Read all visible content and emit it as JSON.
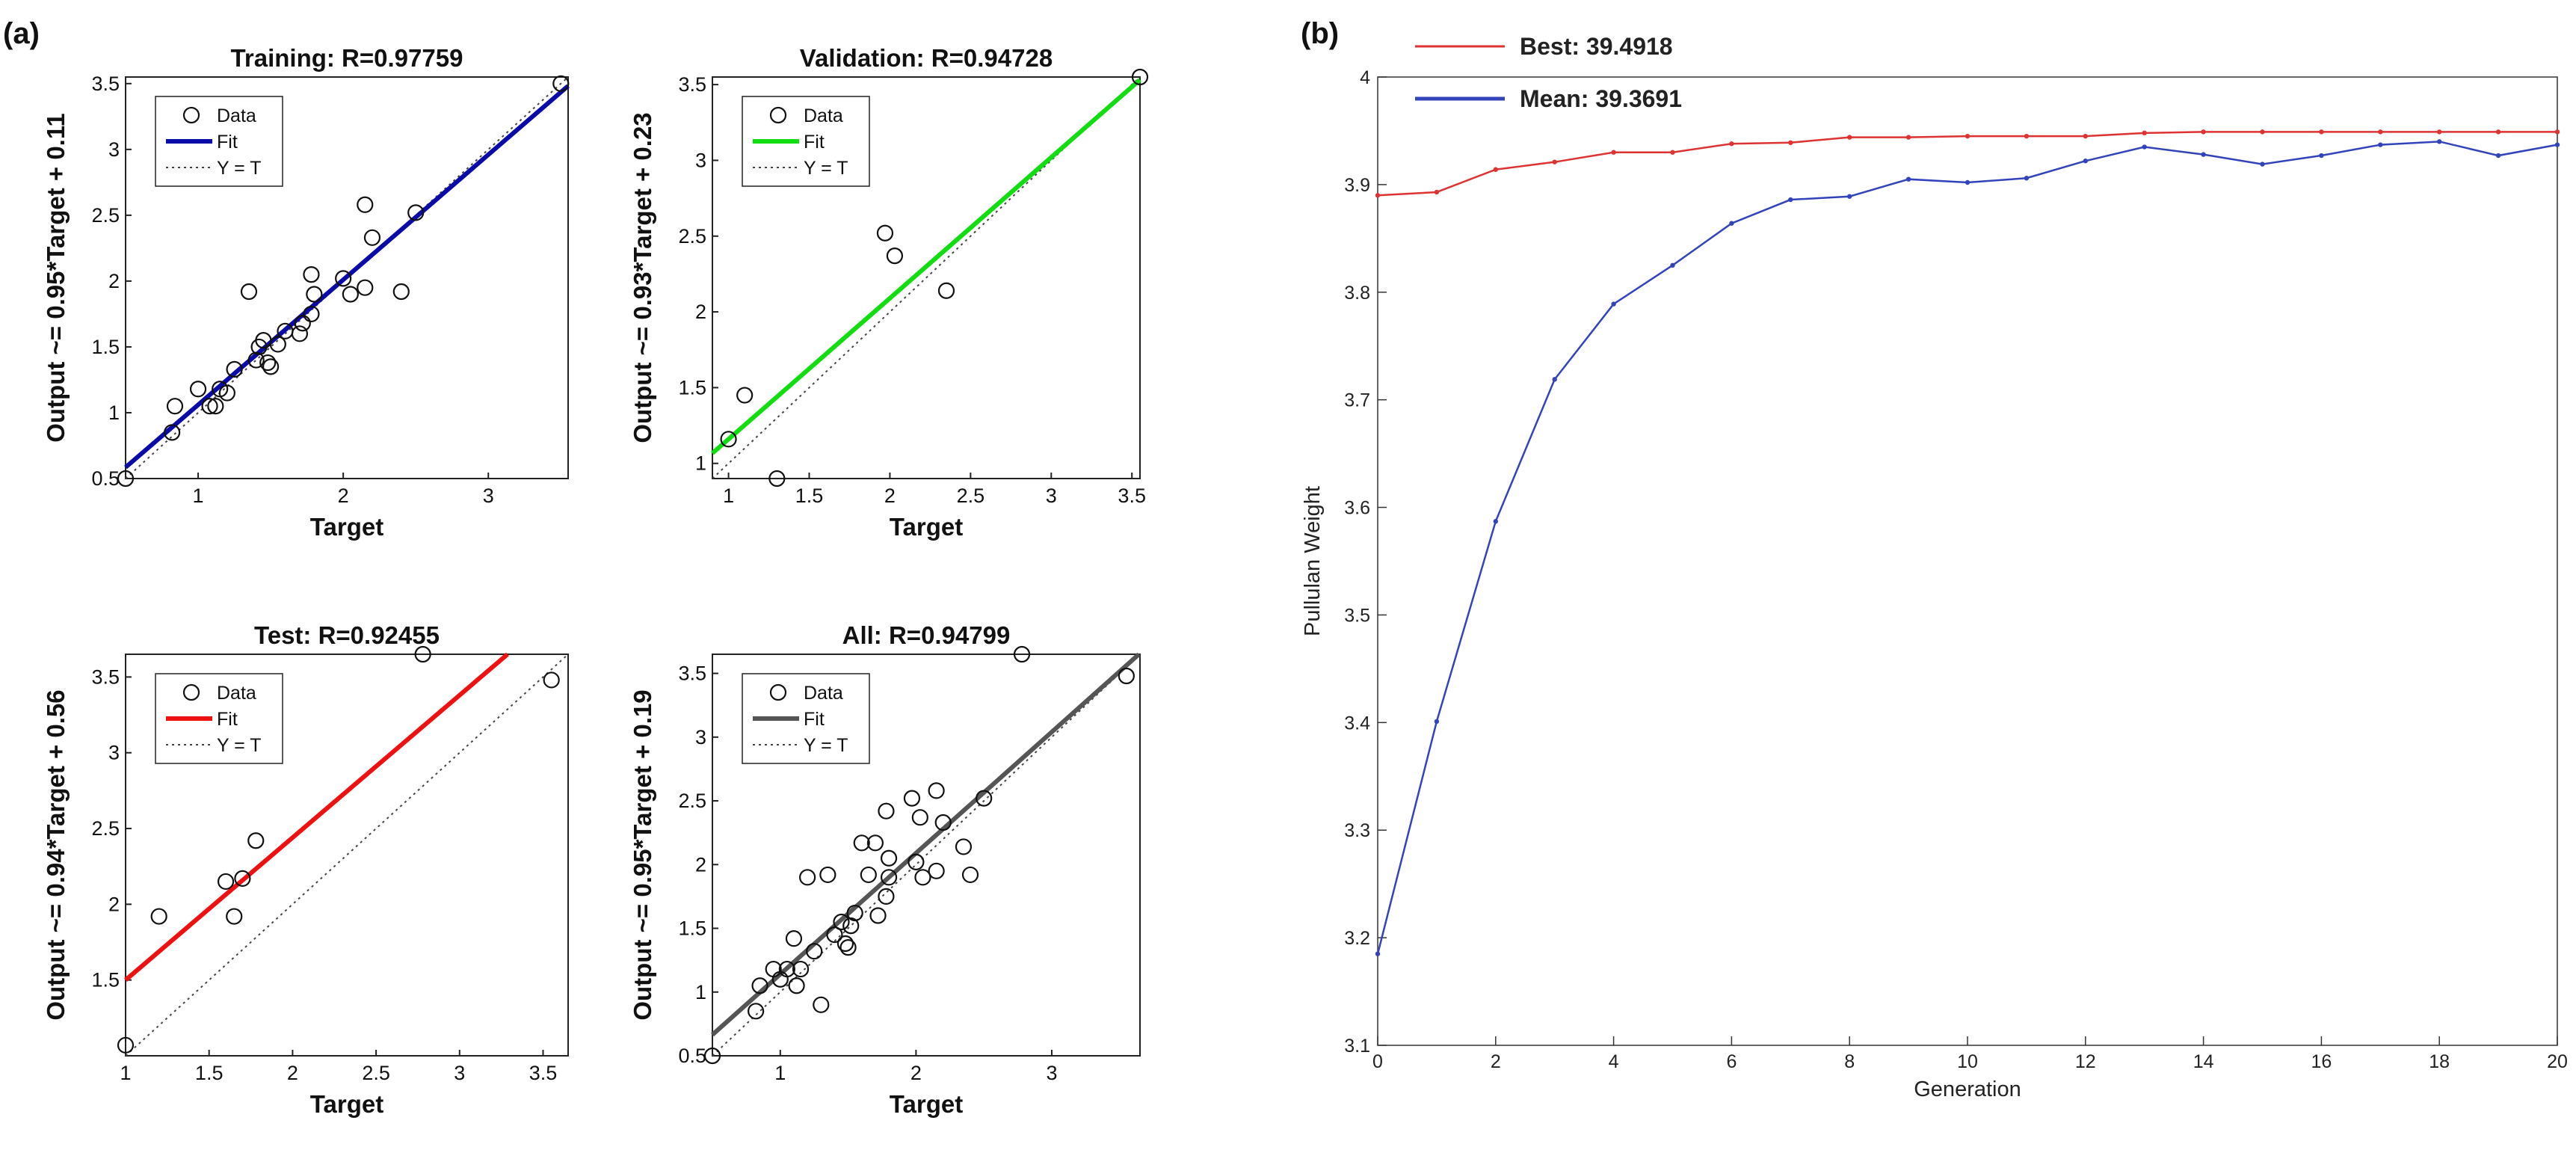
{
  "panel_labels": {
    "a": "(a)",
    "b": "(b)"
  },
  "chart_data": [
    {
      "type": "scatter",
      "title": "Training: R=0.97759",
      "xlabel": "Target",
      "ylabel": "Output ~= 0.95*Target + 0.11",
      "xlim": [
        0.5,
        3.55
      ],
      "ylim": [
        0.5,
        3.55
      ],
      "xticks": [
        1,
        2,
        3
      ],
      "yticks": [
        0.5,
        1,
        1.5,
        2,
        2.5,
        3,
        3.5
      ],
      "fit": {
        "slope": 0.95,
        "intercept": 0.11,
        "color": "#0a0aa8"
      },
      "legend": {
        "data": "Data",
        "fit": "Fit",
        "ident": "Y = T"
      },
      "points": [
        [
          0.5,
          0.5
        ],
        [
          0.82,
          0.85
        ],
        [
          0.84,
          1.05
        ],
        [
          1.0,
          1.18
        ],
        [
          1.08,
          1.05
        ],
        [
          1.12,
          1.05
        ],
        [
          1.15,
          1.18
        ],
        [
          1.2,
          1.15
        ],
        [
          1.25,
          1.33
        ],
        [
          1.35,
          1.92
        ],
        [
          1.4,
          1.4
        ],
        [
          1.42,
          1.5
        ],
        [
          1.45,
          1.55
        ],
        [
          1.48,
          1.38
        ],
        [
          1.5,
          1.35
        ],
        [
          1.55,
          1.52
        ],
        [
          1.6,
          1.62
        ],
        [
          1.7,
          1.6
        ],
        [
          1.72,
          1.68
        ],
        [
          1.78,
          1.75
        ],
        [
          1.8,
          1.9
        ],
        [
          1.78,
          2.05
        ],
        [
          2.0,
          2.02
        ],
        [
          2.05,
          1.9
        ],
        [
          2.15,
          1.95
        ],
        [
          2.15,
          2.58
        ],
        [
          2.2,
          2.33
        ],
        [
          2.4,
          1.92
        ],
        [
          2.5,
          2.52
        ],
        [
          3.5,
          3.5
        ]
      ]
    },
    {
      "type": "scatter",
      "title": "Validation: R=0.94728",
      "xlabel": "Target",
      "ylabel": "Output ~= 0.93*Target + 0.23",
      "xlim": [
        0.9,
        3.55
      ],
      "ylim": [
        0.9,
        3.55
      ],
      "xticks": [
        1,
        1.5,
        2,
        2.5,
        3,
        3.5
      ],
      "yticks": [
        1,
        1.5,
        2,
        2.5,
        3,
        3.5
      ],
      "fit": {
        "slope": 0.93,
        "intercept": 0.23,
        "color": "#11dd11"
      },
      "legend": {
        "data": "Data",
        "fit": "Fit",
        "ident": "Y = T"
      },
      "points": [
        [
          1.0,
          1.16
        ],
        [
          1.1,
          1.45
        ],
        [
          1.3,
          0.9
        ],
        [
          1.97,
          2.52
        ],
        [
          2.03,
          2.37
        ],
        [
          2.35,
          2.14
        ],
        [
          3.55,
          3.55
        ]
      ]
    },
    {
      "type": "scatter",
      "title": "Test: R=0.92455",
      "xlabel": "Target",
      "ylabel": "Output ~= 0.94*Target + 0.56",
      "xlim": [
        1.0,
        3.65
      ],
      "ylim": [
        1.0,
        3.65
      ],
      "xticks": [
        1,
        1.5,
        2,
        2.5,
        3,
        3.5
      ],
      "yticks": [
        1.5,
        2,
        2.5,
        3,
        3.5
      ],
      "fit": {
        "slope": 0.94,
        "intercept": 0.56,
        "color": "#ee1111"
      },
      "legend": {
        "data": "Data",
        "fit": "Fit",
        "ident": "Y = T"
      },
      "points": [
        [
          1.0,
          1.07
        ],
        [
          1.2,
          1.92
        ],
        [
          1.6,
          2.15
        ],
        [
          1.65,
          1.92
        ],
        [
          1.7,
          2.17
        ],
        [
          1.78,
          2.42
        ],
        [
          2.78,
          3.65
        ],
        [
          3.55,
          3.48
        ]
      ]
    },
    {
      "type": "scatter",
      "title": "All: R=0.94799",
      "xlabel": "Target",
      "ylabel": "Output ~= 0.95*Target + 0.19",
      "xlim": [
        0.5,
        3.65
      ],
      "ylim": [
        0.5,
        3.65
      ],
      "xticks": [
        1,
        2,
        3
      ],
      "yticks": [
        0.5,
        1,
        1.5,
        2,
        2.5,
        3,
        3.5
      ],
      "fit": {
        "slope": 0.95,
        "intercept": 0.19,
        "color": "#555555"
      },
      "legend": {
        "data": "Data",
        "fit": "Fit",
        "ident": "Y = T"
      },
      "points": [
        [
          0.5,
          0.5
        ],
        [
          0.82,
          0.85
        ],
        [
          0.85,
          1.05
        ],
        [
          0.95,
          1.18
        ],
        [
          1.0,
          1.1
        ],
        [
          1.05,
          1.18
        ],
        [
          1.1,
          1.42
        ],
        [
          1.12,
          1.05
        ],
        [
          1.15,
          1.18
        ],
        [
          1.2,
          1.9
        ],
        [
          1.25,
          1.32
        ],
        [
          1.3,
          0.9
        ],
        [
          1.35,
          1.92
        ],
        [
          1.4,
          1.45
        ],
        [
          1.45,
          1.55
        ],
        [
          1.48,
          1.38
        ],
        [
          1.5,
          1.35
        ],
        [
          1.52,
          1.52
        ],
        [
          1.55,
          1.62
        ],
        [
          1.6,
          2.17
        ],
        [
          1.65,
          1.92
        ],
        [
          1.7,
          2.17
        ],
        [
          1.72,
          1.6
        ],
        [
          1.78,
          1.75
        ],
        [
          1.78,
          2.42
        ],
        [
          1.8,
          1.9
        ],
        [
          1.8,
          2.05
        ],
        [
          1.97,
          2.52
        ],
        [
          2.0,
          2.02
        ],
        [
          2.03,
          2.37
        ],
        [
          2.05,
          1.9
        ],
        [
          2.15,
          1.95
        ],
        [
          2.15,
          2.58
        ],
        [
          2.2,
          2.33
        ],
        [
          2.35,
          2.14
        ],
        [
          2.4,
          1.92
        ],
        [
          2.5,
          2.52
        ],
        [
          2.78,
          3.65
        ],
        [
          3.55,
          3.48
        ]
      ]
    },
    {
      "type": "line",
      "title": "",
      "xlabel": "Generation",
      "ylabel": "Pullulan Weight",
      "xlim": [
        0,
        20
      ],
      "ylim": [
        3.1,
        4.0
      ],
      "xticks": [
        0,
        2,
        4,
        6,
        8,
        10,
        12,
        14,
        16,
        18,
        20
      ],
      "yticks": [
        3.1,
        3.2,
        3.3,
        3.4,
        3.5,
        3.6,
        3.7,
        3.8,
        3.9,
        4
      ],
      "x": [
        0,
        1,
        2,
        3,
        4,
        5,
        6,
        7,
        8,
        9,
        10,
        11,
        12,
        13,
        14,
        15,
        16,
        17,
        18,
        19,
        20
      ],
      "series": [
        {
          "name": "Best: 39.4918",
          "color": "#dd3333",
          "values": [
            3.89,
            3.893,
            3.914,
            3.921,
            3.93,
            3.93,
            3.938,
            3.939,
            3.944,
            3.944,
            3.945,
            3.945,
            3.945,
            3.948,
            3.949,
            3.949,
            3.949,
            3.949,
            3.949,
            3.949,
            3.949
          ]
        },
        {
          "name": "Mean: 39.3691",
          "color": "#3344bb",
          "values": [
            3.185,
            3.401,
            3.587,
            3.719,
            3.789,
            3.825,
            3.864,
            3.886,
            3.889,
            3.905,
            3.902,
            3.906,
            3.922,
            3.935,
            3.928,
            3.919,
            3.927,
            3.937,
            3.94,
            3.927,
            3.937
          ]
        }
      ]
    }
  ]
}
